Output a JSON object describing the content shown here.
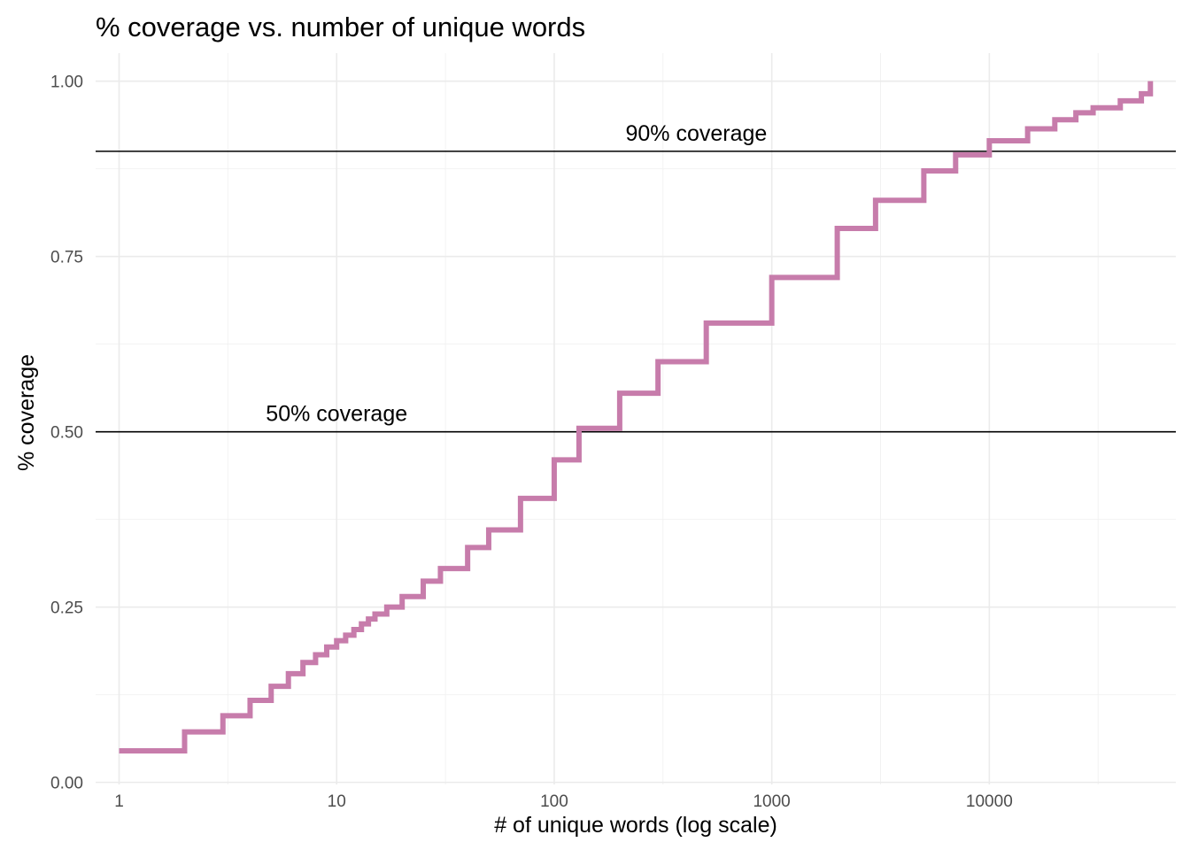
{
  "chart_data": {
    "type": "line",
    "title": "% coverage vs. number of unique words",
    "xlabel": "# of unique words (log scale)",
    "ylabel": "% coverage",
    "x_scale": "log10",
    "xlim": [
      0.78,
      72000
    ],
    "ylim": [
      -0.003,
      1.04
    ],
    "x_ticks": [
      {
        "value": 1,
        "label": "1"
      },
      {
        "value": 10,
        "label": "10"
      },
      {
        "value": 100,
        "label": "100"
      },
      {
        "value": 1000,
        "label": "1000"
      },
      {
        "value": 10000,
        "label": "10000"
      }
    ],
    "y_ticks": [
      {
        "value": 0.0,
        "label": "0.00"
      },
      {
        "value": 0.25,
        "label": "0.25"
      },
      {
        "value": 0.5,
        "label": "0.50"
      },
      {
        "value": 0.75,
        "label": "0.75"
      },
      {
        "value": 1.0,
        "label": "1.00"
      }
    ],
    "grid": true,
    "step": true,
    "series_color": "#c77cab",
    "series": [
      {
        "x": [
          1,
          2,
          3,
          4,
          5,
          6,
          7,
          8,
          9,
          10,
          11,
          12,
          13,
          14,
          15,
          17,
          20,
          25,
          30,
          40,
          50,
          70,
          100,
          130,
          200,
          300,
          500,
          1000,
          2000,
          3000,
          5000,
          7000,
          10000,
          15000,
          20000,
          25000,
          30000,
          40000,
          50000,
          55000
        ],
        "y": [
          0.045,
          0.072,
          0.095,
          0.117,
          0.137,
          0.155,
          0.171,
          0.182,
          0.193,
          0.202,
          0.21,
          0.218,
          0.226,
          0.233,
          0.24,
          0.25,
          0.265,
          0.287,
          0.305,
          0.335,
          0.36,
          0.405,
          0.46,
          0.505,
          0.555,
          0.6,
          0.655,
          0.72,
          0.79,
          0.83,
          0.872,
          0.895,
          0.915,
          0.932,
          0.945,
          0.955,
          0.962,
          0.972,
          0.982,
          1.0
        ]
      }
    ],
    "reference_lines": [
      {
        "y": 0.5,
        "label": "50% coverage",
        "label_x": 10
      },
      {
        "y": 0.9,
        "label": "90% coverage",
        "label_x": 450
      }
    ]
  }
}
